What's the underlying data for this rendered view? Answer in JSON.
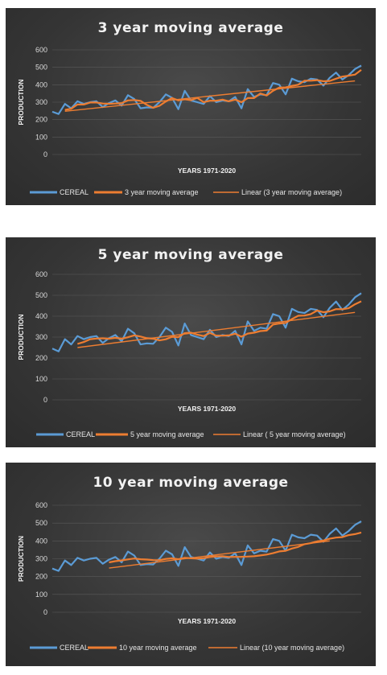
{
  "chart_data": [
    {
      "type": "line",
      "title": "3 year moving average",
      "xlabel": "YEARS 1971-2020",
      "ylabel": "PRODUCTION",
      "ylim": [
        0,
        600
      ],
      "yticks": [
        0,
        100,
        200,
        300,
        400,
        500,
        600
      ],
      "window": 3,
      "legend": [
        "CEREAL",
        "3 year moving average",
        "Linear (3 year moving average)"
      ],
      "trend": [
        248,
        422
      ]
    },
    {
      "type": "line",
      "title": "5 year moving average",
      "xlabel": "YEARS 1971-2020",
      "ylabel": "PRODUCTION",
      "ylim": [
        0,
        600
      ],
      "yticks": [
        0,
        100,
        200,
        300,
        400,
        500,
        600
      ],
      "window": 5,
      "legend": [
        "CEREAL",
        "5 year moving average",
        "Linear ( 5 year moving average)"
      ],
      "trend": [
        250,
        418
      ]
    },
    {
      "type": "line",
      "title": "10 year moving average",
      "xlabel": "YEARS 1971-2020",
      "ylabel": "PRODUCTION",
      "ylim": [
        0,
        600
      ],
      "yticks": [
        0,
        100,
        200,
        300,
        400,
        500,
        600
      ],
      "window": 10,
      "legend": [
        "CEREAL",
        "10 year moving average",
        "Linear (10 year moving average)"
      ],
      "trend": [
        248,
        400
      ]
    }
  ],
  "cereal": [
    245,
    232,
    290,
    265,
    305,
    290,
    300,
    305,
    272,
    295,
    310,
    280,
    340,
    318,
    265,
    270,
    268,
    300,
    345,
    325,
    260,
    365,
    310,
    300,
    290,
    335,
    300,
    310,
    305,
    330,
    265,
    375,
    330,
    345,
    340,
    410,
    400,
    345,
    435,
    420,
    415,
    435,
    430,
    395,
    440,
    470,
    430,
    455,
    490,
    510
  ],
  "colors": {
    "cereal": "#5b9bd5",
    "ma": "#ed7d31",
    "trend": "#ed7d31"
  }
}
